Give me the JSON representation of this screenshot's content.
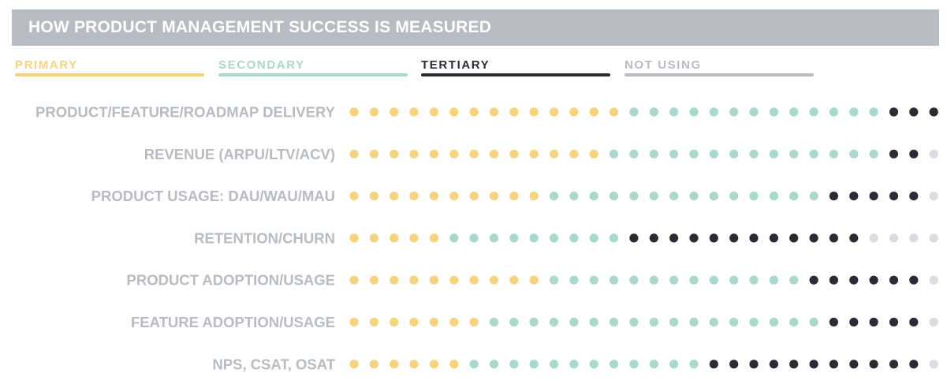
{
  "header": {
    "title": "HOW PRODUCT MANAGEMENT SUCCESS IS MEASURED"
  },
  "legend": [
    {
      "label": "PRIMARY",
      "color": "#f7d37e"
    },
    {
      "label": "SECONDARY",
      "color": "#a8d9cc"
    },
    {
      "label": "TERTIARY",
      "color": "#2b2b36"
    },
    {
      "label": "NOT USING",
      "color": "#b9bbc3"
    }
  ],
  "colors": {
    "primary": "#f7d37e",
    "secondary": "#a8d9cc",
    "tertiary": "#2b2b36",
    "not_using": "#dcdbe4",
    "row_label": "#b9bbc3",
    "header_bg": "#b9bbc3"
  },
  "chart_data": {
    "type": "dot_matrix",
    "title": "HOW PRODUCT MANAGEMENT SUCCESS IS MEASURED",
    "dots_per_row": 30,
    "series": [
      "PRIMARY",
      "SECONDARY",
      "TERTIARY",
      "NOT USING"
    ],
    "rows": [
      {
        "label": "PRODUCT/FEATURE/ROADMAP DELIVERY",
        "primary": 14,
        "secondary": 13,
        "tertiary": 3,
        "not_using": 0
      },
      {
        "label": "REVENUE (ARPU/LTV/ACV)",
        "primary": 13,
        "secondary": 14,
        "tertiary": 2,
        "not_using": 1
      },
      {
        "label": "PRODUCT USAGE: DAU/WAU/MAU",
        "primary": 10,
        "secondary": 14,
        "tertiary": 5,
        "not_using": 1
      },
      {
        "label": "RETENTION/CHURN",
        "primary": 5,
        "secondary": 9,
        "tertiary": 12,
        "not_using": 4
      },
      {
        "label": "PRODUCT ADOPTION/USAGE",
        "primary": 10,
        "secondary": 13,
        "tertiary": 6,
        "not_using": 1
      },
      {
        "label": "FEATURE ADOPTION/USAGE",
        "primary": 7,
        "secondary": 17,
        "tertiary": 5,
        "not_using": 1
      },
      {
        "label": "NPS, CSAT, OSAT",
        "primary": 6,
        "secondary": 12,
        "tertiary": 11,
        "not_using": 1
      }
    ]
  }
}
